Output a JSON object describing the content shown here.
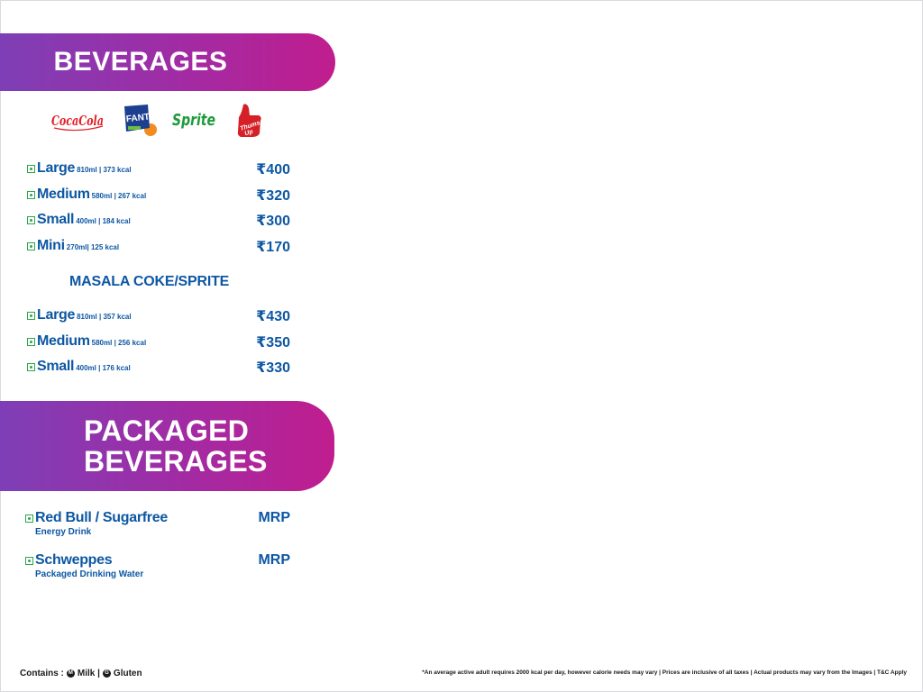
{
  "beverages": {
    "title": "BEVERAGES",
    "brands": [
      "Coca-Cola",
      "Fanta",
      "Sprite",
      "Thums Up"
    ],
    "fountain": [
      {
        "size": "Large",
        "meta": "810ml | 373 kcal",
        "price": "₹400"
      },
      {
        "size": "Medium",
        "meta": "580ml | 267 kcal",
        "price": "₹320"
      },
      {
        "size": "Small",
        "meta": "400ml | 184 kcal",
        "price": "₹300"
      },
      {
        "size": "Mini",
        "meta": "270ml| 125 kcal",
        "price": "₹170"
      }
    ],
    "masala_title": "MASALA COKE/SPRITE",
    "masala": [
      {
        "size": "Large",
        "meta": "810ml | 357 kcal",
        "price": "₹430"
      },
      {
        "size": "Medium",
        "meta": "580ml | 256 kcal",
        "price": "₹350"
      },
      {
        "size": "Small",
        "meta": "400ml | 176 kcal",
        "price": "₹330"
      }
    ]
  },
  "packaged": {
    "title": "PACKAGED\nBEVERAGES",
    "items": [
      {
        "name": "Red Bull / Sugarfree",
        "sub": "Energy Drink",
        "price": "MRP"
      },
      {
        "name": "Schweppes",
        "sub": "Packaged Drinking Water",
        "price": "MRP"
      }
    ]
  },
  "footer": {
    "contains_label": "Contains :",
    "milk_mark": "M",
    "milk": "Milk |",
    "gluten_mark": "G",
    "gluten": "Gluten",
    "disclaimer": "*An average active adult requires 2000 kcal per day, however calorie needs may vary | Prices are inclusive of all taxes | Actual products may vary from the Images | T&C Apply"
  },
  "colors": {
    "accent_start": "#7e3fb6",
    "accent_end": "#c01d8e",
    "text_blue": "#0d57a3",
    "veg_green": "#2aa84a"
  }
}
